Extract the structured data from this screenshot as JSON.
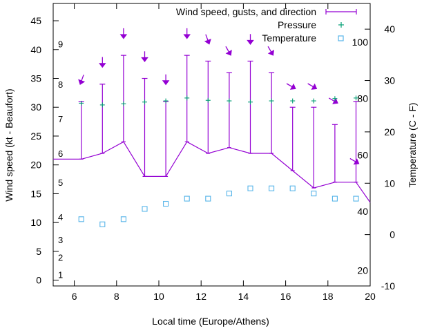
{
  "chart_data": {
    "type": "line",
    "title": "",
    "xlabel": "Local time (Europe/Athens)",
    "ylabel": "Wind speed (kt - Beaufort)",
    "y2label": "Temperature (C - F)",
    "xlim": [
      5,
      20
    ],
    "ylim": [
      -1,
      48
    ],
    "y2lim": [
      -10,
      45
    ],
    "xticks": [
      "6",
      "8",
      "10",
      "12",
      "14",
      "16",
      "18",
      "20"
    ],
    "yticks": [
      "0",
      "5",
      "10",
      "15",
      "20",
      "25",
      "30",
      "35",
      "40",
      "45"
    ],
    "y2ticks": [
      "-10",
      "0",
      "10",
      "20",
      "30",
      "40"
    ],
    "grid": false,
    "legend_position": "top-right",
    "beaufort_scale": [
      {
        "label": "1",
        "y": 1
      },
      {
        "label": "2",
        "y": 4
      },
      {
        "label": "3",
        "y": 7
      },
      {
        "label": "4",
        "y": 11
      },
      {
        "label": "5",
        "y": 17
      },
      {
        "label": "6",
        "y": 22
      },
      {
        "label": "7",
        "y": 28
      },
      {
        "label": "8",
        "y": 34
      },
      {
        "label": "9",
        "y": 41
      }
    ],
    "fahrenheit_scale": [
      {
        "label": "20",
        "y2": -7
      },
      {
        "label": "40",
        "y2": 4.5
      },
      {
        "label": "60",
        "y2": 15.5
      },
      {
        "label": "80",
        "y2": 26.5
      },
      {
        "label": "100",
        "y2": 37.5
      }
    ],
    "series": [
      {
        "name": "Wind speed, gusts, and direction",
        "color": "#9400d3",
        "x": [
          5,
          6.33,
          7.33,
          8.33,
          9.33,
          10.33,
          11.33,
          12.33,
          13.33,
          14.33,
          15.33,
          16.33,
          17.33,
          18.33,
          19.33,
          20
        ],
        "values": [
          21,
          21,
          22,
          24,
          18,
          18,
          24,
          22,
          23,
          22,
          22,
          19,
          16,
          17,
          17,
          13.5
        ],
        "gusts": [
          null,
          31,
          34,
          39,
          35,
          31,
          39,
          38,
          36,
          38,
          36,
          30,
          30,
          27,
          31,
          null
        ],
        "arrow_y": [
          null,
          34.5,
          37.5,
          42.5,
          38.5,
          34.5,
          42.5,
          41.5,
          39.5,
          41.5,
          39.5,
          33.5,
          33.5,
          31,
          20.5,
          null
        ],
        "direction_deg": [
          null,
          20,
          0,
          0,
          0,
          0,
          0,
          340,
          330,
          0,
          330,
          300,
          300,
          300,
          300,
          null
        ]
      },
      {
        "name": "Pressure",
        "color": "#009e73",
        "x": [
          6.33,
          7.33,
          8.33,
          9.33,
          10.33,
          11.33,
          12.33,
          13.33,
          14.33,
          15.33,
          16.33,
          17.33,
          18.33,
          19.33
        ],
        "values": [
          30.7,
          30.4,
          30.6,
          30.9,
          31.1,
          31.6,
          31.2,
          31.1,
          30.9,
          31.1,
          31.1,
          31.1,
          31.5,
          31.6
        ]
      },
      {
        "name": "Temperature",
        "color": "#56b4e9",
        "x": [
          6.33,
          7.33,
          8.33,
          9.33,
          10.33,
          11.33,
          12.33,
          13.33,
          14.33,
          15.33,
          16.33,
          17.33,
          18.33,
          19.33
        ],
        "values": [
          3,
          2,
          3,
          5,
          6,
          7,
          7,
          8,
          9,
          9,
          9,
          8,
          7,
          7
        ]
      }
    ]
  }
}
